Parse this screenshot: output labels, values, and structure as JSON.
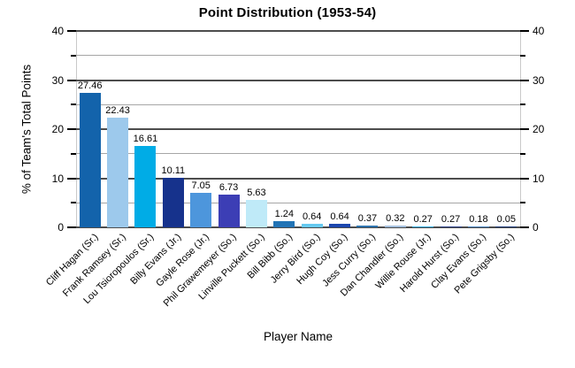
{
  "chart_data": {
    "type": "bar",
    "title": "Point Distribution (1953-54)",
    "xlabel": "Player Name",
    "ylabel": "% of Team's Total Points",
    "ylim": [
      0,
      40
    ],
    "yticks_major": [
      0,
      10,
      20,
      30,
      40
    ],
    "yticks_minor": [
      5,
      15,
      25,
      35
    ],
    "grid": true,
    "dual_y_axis_labels": true,
    "legend": "none",
    "categories": [
      "Cliff Hagan (Sr.)",
      "Frank Ramsey (Sr.)",
      "Lou Tsioropoulos (Sr.)",
      "Billy Evans (Jr.)",
      "Gayle Rose (Jr.)",
      "Phil Grawemeyer (So.)",
      "Linville Puckett (So.)",
      "Bill Bibb (So.)",
      "Jerry Bird (So.)",
      "Hugh Coy (So.)",
      "Jess Curry (So.)",
      "Dan Chandler (So.)",
      "Willie Rouse (Jr.)",
      "Harold Hurst (So.)",
      "Clay Evans (So.)",
      "Pete Grigsby (So.)"
    ],
    "values": [
      27.46,
      22.43,
      16.61,
      10.11,
      7.05,
      6.73,
      5.63,
      1.24,
      0.64,
      0.64,
      0.37,
      0.32,
      0.27,
      0.27,
      0.18,
      0.05
    ],
    "value_labels": [
      "27.46",
      "22.43",
      "16.61",
      "10.11",
      "7.05",
      "6.73",
      "5.63",
      "1.24",
      "0.64",
      "0.64",
      "0.37",
      "0.32",
      "0.27",
      "0.27",
      "0.18",
      "0.05"
    ],
    "bar_colors": [
      "#1363AB",
      "#9DC9EC",
      "#00ACE6",
      "#16328C",
      "#4D96DC",
      "#3C3EB5",
      "#BFEAF8",
      "#2273B5",
      "#66C9F0",
      "#1B46AE",
      "#2D72AC",
      "#A3BEDC",
      "#30AADC",
      "#2E4288",
      "#4A84BE",
      "#1E3A78"
    ]
  },
  "colors": {
    "grid_major": "#4D4D4D",
    "grid_minor": "#A6A6A6",
    "plot_side_border": "#C9C9C9",
    "tick": "#000000",
    "text": "#000000",
    "background": "#FFFFFF"
  }
}
